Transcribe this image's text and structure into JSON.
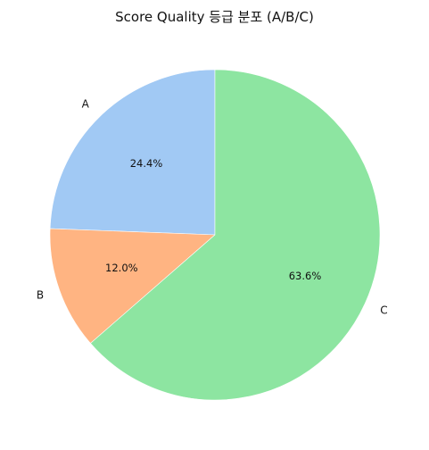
{
  "chart_data": {
    "type": "pie",
    "title": "Score Quality 등급 분포 (A/B/C)",
    "categories": [
      "A",
      "B",
      "C"
    ],
    "values": [
      24.4,
      12.0,
      63.6
    ],
    "value_labels": [
      "24.4%",
      "12.0%",
      "63.6%"
    ],
    "colors": [
      "#a1c9f4",
      "#ffb482",
      "#8de5a1"
    ],
    "legend": "none"
  }
}
